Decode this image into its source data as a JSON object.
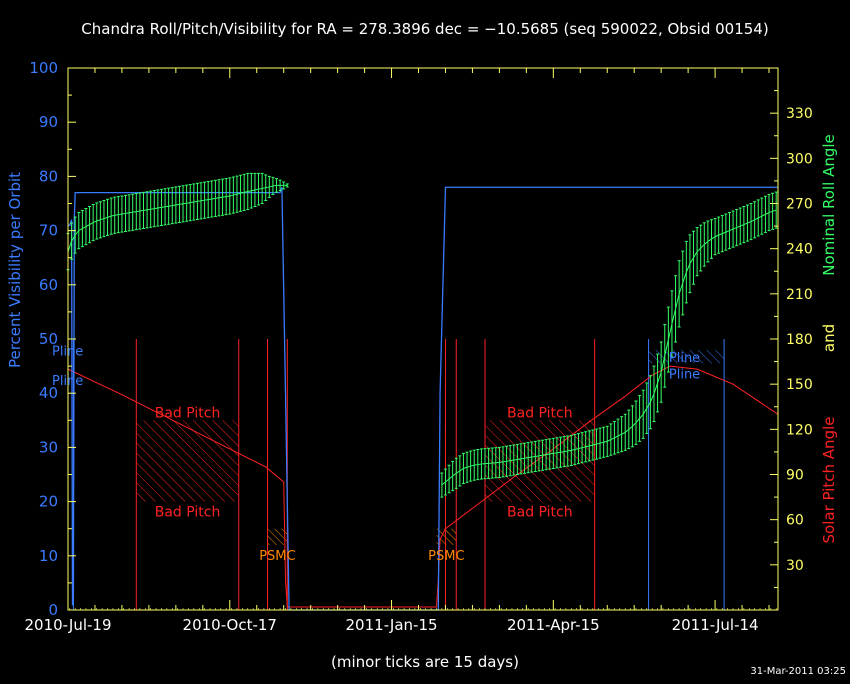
{
  "chart_data": {
    "type": "line",
    "title": "Chandra Roll/Pitch/Visibility for RA = 278.3896 dec = −10.5685 (seq 590022, Obsid 00154)",
    "xlabel": "(minor ticks are 15 days)",
    "ylabel_left": "Percent Visibility per Orbit",
    "ylabel_right_roll": "Nominal Roll Angle",
    "ylabel_right_and": "and",
    "ylabel_right_pitch": "Solar Pitch Angle",
    "timestamp": "31-Mar-2011 03:25",
    "x_ticks": [
      "2010-Jul-19",
      "2010-Oct-17",
      "2011-Jan-15",
      "2011-Apr-15",
      "2011-Jul-14"
    ],
    "x_tick_days": [
      0,
      90,
      180,
      270,
      360
    ],
    "xlim": [
      0,
      395
    ],
    "ylim_left": [
      0,
      100
    ],
    "y_ticks_left": [
      0,
      10,
      20,
      30,
      40,
      50,
      60,
      70,
      80,
      90,
      100
    ],
    "ylim_right": [
      0,
      360
    ],
    "y_ticks_right": [
      30,
      60,
      90,
      120,
      150,
      180,
      210,
      240,
      270,
      300,
      330
    ],
    "colors": {
      "title": "#ffffff",
      "axes": "#ffff66",
      "visibility": "#3a7bff",
      "roll": "#33ff66",
      "pitch": "#ff2222",
      "psmc": "#ff8800",
      "pline": "#3a7bff",
      "background": "#000000"
    },
    "series": [
      {
        "name": "visibility",
        "x": [
          0,
          1,
          2,
          2.5,
          3,
          3.5,
          4,
          8,
          30,
          60,
          90,
          118,
          119,
          121,
          123,
          124,
          130,
          150,
          175,
          205,
          206,
          206.5,
          207,
          210,
          240,
          270,
          300,
          330,
          360,
          395
        ],
        "y": [
          71,
          71,
          72,
          1,
          1,
          72,
          77,
          77,
          77,
          77,
          77,
          77,
          78,
          40,
          0,
          0,
          0,
          0,
          0,
          0,
          0,
          20,
          40,
          78,
          78,
          78,
          78,
          78,
          78,
          78
        ]
      },
      {
        "name": "roll",
        "x": [
          0,
          2,
          4,
          6,
          9,
          12,
          15,
          20,
          25,
          30,
          40,
          50,
          60,
          70,
          80,
          90,
          100,
          108,
          112,
          115,
          119,
          122,
          208,
          215,
          220,
          225,
          230,
          240,
          250,
          260,
          270,
          280,
          290,
          300,
          310,
          315,
          320,
          325,
          330,
          335,
          340,
          345,
          350,
          355,
          360,
          370,
          380,
          390,
          395
        ],
        "y": [
          238,
          245,
          249,
          252,
          254,
          256,
          258,
          260,
          262,
          263,
          265,
          267,
          269,
          271,
          273,
          275,
          278,
          280,
          281,
          282,
          282,
          282,
          83,
          90,
          94,
          96,
          97,
          98,
          100,
          102,
          104,
          106,
          109,
          112,
          118,
          123,
          130,
          140,
          158,
          185,
          210,
          228,
          238,
          244,
          248,
          253,
          258,
          264,
          266
        ],
        "err_x": [
          0,
          2,
          4,
          6,
          9,
          12,
          15,
          20,
          25,
          30,
          40,
          50,
          60,
          70,
          80,
          90,
          100,
          108,
          112,
          115,
          119,
          122,
          208,
          215,
          220,
          225,
          230,
          240,
          250,
          260,
          270,
          280,
          290,
          300,
          310,
          315,
          320,
          325,
          330,
          335,
          340,
          345,
          350,
          355,
          360,
          370,
          380,
          390,
          395
        ],
        "err": [
          12,
          12,
          12,
          12,
          12,
          12,
          12,
          12,
          12,
          12,
          12,
          12,
          12,
          12,
          12,
          12,
          12,
          10,
          7,
          5,
          3,
          1,
          8,
          10,
          10,
          10,
          10,
          10,
          10,
          10,
          10,
          10,
          10,
          10,
          12,
          14,
          16,
          18,
          20,
          22,
          22,
          20,
          16,
          14,
          12,
          12,
          12,
          12,
          12
        ]
      },
      {
        "name": "pitch",
        "x": [
          0,
          30,
          60,
          90,
          110,
          120,
          121,
          122,
          205,
          206,
          207,
          210,
          230,
          250,
          270,
          290,
          310,
          325,
          335,
          350,
          370,
          395
        ],
        "y": [
          160,
          143,
          125,
          107,
          95,
          85,
          20,
          2,
          2,
          20,
          47,
          54,
          72,
          90,
          107,
          125,
          142,
          156,
          162,
          160,
          150,
          130
        ]
      }
    ],
    "bad_pitch_regions": [
      {
        "x": [
          38,
          95
        ],
        "y": [
          20,
          35
        ]
      },
      {
        "x": [
          232,
          293
        ],
        "y": [
          20,
          35
        ]
      }
    ],
    "bad_pitch_label": "Bad Pitch",
    "red_vlines": [
      38,
      95,
      111,
      122,
      210,
      216,
      232,
      293
    ],
    "red_vline_top": 50,
    "psmc_regions": [
      {
        "x": [
          111,
          122
        ],
        "y": [
          12,
          15
        ]
      },
      {
        "x": [
          205,
          216
        ],
        "y": [
          12,
          15
        ]
      }
    ],
    "psmc_label": "PSMC",
    "pline_vlines": [
      0,
      3,
      323,
      365
    ],
    "pline_vline_top": 50,
    "pline_regions": [
      {
        "x": [
          323,
          365
        ],
        "y": [
          45.5,
          48
        ]
      }
    ],
    "pline_label": "Pline"
  }
}
